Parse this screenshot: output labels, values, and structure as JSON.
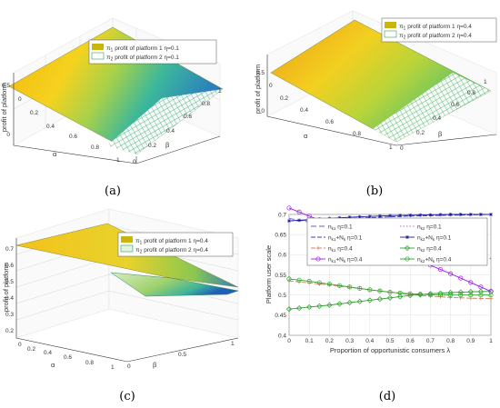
{
  "panels": {
    "a": {
      "caption": "(a)",
      "zlabel": "profit of platform",
      "xlabel": "α",
      "ylabel": "β",
      "legend": [
        {
          "sym": "π",
          "sub": "1",
          "text": "profit of platform 1 η=0.1"
        },
        {
          "sym": "π",
          "sub": "2",
          "text": "profit of platform 2 η=0.1"
        }
      ],
      "alpha_ticks": [
        "0",
        "0.2",
        "0.4",
        "0.6",
        "0.8",
        "1"
      ],
      "beta_ticks": [
        "0",
        "0.2",
        "0.4",
        "0.6",
        "0.8",
        "1"
      ],
      "z_ticks": [
        "0",
        "0.5"
      ]
    },
    "b": {
      "caption": "(b)",
      "zlabel": "profit of platform",
      "xlabel": "α",
      "ylabel": "β",
      "legend": [
        {
          "sym": "π",
          "sub": "1",
          "text": "profit of platform 1 η=0.4"
        },
        {
          "sym": "π",
          "sub": "2",
          "text": "profit of platform 2 η=0.4"
        }
      ],
      "alpha_ticks": [
        "0",
        "0.2",
        "0.4",
        "0.6",
        "0.8",
        "1"
      ],
      "beta_ticks": [
        "0",
        "0.2",
        "0.4",
        "0.6",
        "0.8",
        "1"
      ],
      "z_ticks": [
        "0",
        "0.5"
      ]
    },
    "c": {
      "caption": "(c)",
      "zlabel": "profit of platform",
      "xlabel": "α",
      "ylabel": "β",
      "legend": [
        {
          "sym": "π",
          "sub": "1",
          "text": "profit of platform 1 η=0.4"
        },
        {
          "sym": "π",
          "sub": "2",
          "text": "profit of platform 2 η=0.4"
        }
      ],
      "alpha_ticks": [
        "0",
        "0.2",
        "0.4",
        "0.6",
        "0.8",
        "1"
      ],
      "beta_ticks": [
        "0",
        "0.5",
        "1"
      ],
      "z_ticks": [
        "0.2",
        "0.3",
        "0.4",
        "0.5",
        "0.6",
        "0.7"
      ]
    },
    "d": {
      "caption": "(d)"
    }
  },
  "chart_data": [
    {
      "type": "line",
      "panel": "d",
      "xlabel": "Proportion of opportunistic consumers λ",
      "ylabel": "Platform user scale",
      "xlim": [
        0,
        1
      ],
      "ylim": [
        0.4,
        0.7
      ],
      "x_ticks": [
        "0",
        "0.1",
        "0.2",
        "0.3",
        "0.4",
        "0.5",
        "0.6",
        "0.7",
        "0.8",
        "0.9",
        "1"
      ],
      "y_ticks": [
        "0.4",
        "0.45",
        "0.5",
        "0.55",
        "0.6",
        "0.65",
        "0.7"
      ],
      "x": [
        0,
        0.1,
        0.2,
        0.3,
        0.4,
        0.5,
        0.6,
        0.7,
        0.8,
        0.9,
        1.0
      ],
      "series": [
        {
          "name": "n_k1 η=0.1",
          "legend_main": "n",
          "legend_sub": "k1",
          "legend_rest": " η=0.1",
          "color": "#6a5acd",
          "dash": "6,3",
          "marker": "none",
          "values": [
            0.69,
            0.681,
            0.672,
            0.663,
            0.653,
            0.643,
            0.633,
            0.622,
            0.612,
            0.601,
            0.59
          ]
        },
        {
          "name": "n_k2 η=0.1",
          "legend_main": "n",
          "legend_sub": "k2",
          "legend_rest": " η=0.1",
          "color": "#c060c0",
          "dash": "1.5,2",
          "marker": "none",
          "values": [
            0.716,
            0.696,
            0.676,
            0.656,
            0.636,
            0.616,
            0.595,
            0.574,
            0.553,
            0.531,
            0.509
          ]
        },
        {
          "name": "n_k1+N_k η=0.1",
          "legend_main": "n",
          "legend_sub": "k1",
          "legend_rest": "+N",
          "legend_sub2": "k",
          "legend_rest2": " η=0.1",
          "color": "#3b3bd0",
          "dash": "5,2",
          "marker": "none",
          "values": [
            0.684,
            0.686,
            0.688,
            0.69,
            0.692,
            0.694,
            0.696,
            0.697,
            0.698,
            0.699,
            0.7
          ]
        },
        {
          "name": "n_k2+N_k η=0.1",
          "legend_main": "n",
          "legend_sub": "k2",
          "legend_rest": "+N",
          "legend_sub2": "k",
          "legend_rest2": " η=0.1",
          "color": "#1a1aa0",
          "dash": "",
          "marker": "star",
          "values": [
            0.684,
            0.687,
            0.69,
            0.693,
            0.695,
            0.697,
            0.698,
            0.699,
            0.7,
            0.7,
            0.7
          ]
        },
        {
          "name": "n_k1 η=0.4",
          "legend_main": "n",
          "legend_sub": "k1",
          "legend_rest": " η=0.4",
          "color": "#d08060",
          "dash": "5,2",
          "marker": "plus",
          "values": [
            0.535,
            0.53,
            0.525,
            0.519,
            0.513,
            0.507,
            0.501,
            0.497,
            0.494,
            0.492,
            0.491
          ]
        },
        {
          "name": "n_k2 η=0.4",
          "legend_main": "n",
          "legend_sub": "k2",
          "legend_rest": " η=0.4",
          "color": "#2ca02c",
          "dash": "",
          "marker": "diamond",
          "values": [
            0.465,
            0.47,
            0.475,
            0.481,
            0.487,
            0.493,
            0.499,
            0.503,
            0.506,
            0.508,
            0.509
          ]
        },
        {
          "name": "n_k1+N_k η=0.4",
          "legend_main": "n",
          "legend_sub": "k1",
          "legend_rest": "+N",
          "legend_sub2": "k",
          "legend_rest2": " η=0.4",
          "color": "#a020f0",
          "dash": "",
          "marker": "circle",
          "values": [
            0.716,
            0.696,
            0.676,
            0.656,
            0.636,
            0.616,
            0.595,
            0.574,
            0.553,
            0.531,
            0.509
          ]
        },
        {
          "name": "n_k2+N_k η=0.4",
          "legend_main": "n",
          "legend_sub": "k2",
          "legend_rest": "+N",
          "legend_sub2": "k",
          "legend_rest2": " η=0.4",
          "color": "#2ca02c",
          "dash": "",
          "marker": "circle",
          "values": [
            0.54,
            0.534,
            0.527,
            0.52,
            0.513,
            0.507,
            0.503,
            0.501,
            0.5,
            0.5,
            0.5
          ]
        }
      ]
    }
  ]
}
